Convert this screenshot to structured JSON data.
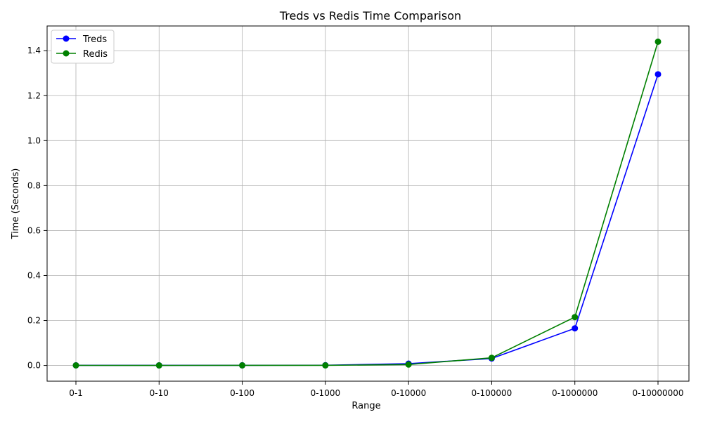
{
  "chart_data": {
    "type": "line",
    "title": "Treds vs Redis Time Comparison",
    "xlabel": "Range",
    "ylabel": "Time (Seconds)",
    "categories": [
      "0-1",
      "0-10",
      "0-100",
      "0-1000",
      "0-10000",
      "0-100000",
      "0-1000000",
      "0-10000000"
    ],
    "ylim": [
      -0.07,
      1.51
    ],
    "yticks": [
      0.0,
      0.2,
      0.4,
      0.6,
      0.8,
      1.0,
      1.2,
      1.4
    ],
    "ytick_labels": [
      "0.0",
      "0.2",
      "0.4",
      "0.6",
      "0.8",
      "1.0",
      "1.2",
      "1.4"
    ],
    "grid": true,
    "legend_position": "top-left",
    "series": [
      {
        "name": "Treds",
        "color": "#0000ff",
        "marker": "circle",
        "values": [
          0.0005,
          0.0003,
          0.0005,
          0.001,
          0.008,
          0.031,
          0.165,
          1.295
        ]
      },
      {
        "name": "Redis",
        "color": "#008000",
        "marker": "circle",
        "values": [
          0.0003,
          0.0002,
          0.0003,
          0.0004,
          0.004,
          0.034,
          0.215,
          1.44
        ]
      }
    ]
  }
}
